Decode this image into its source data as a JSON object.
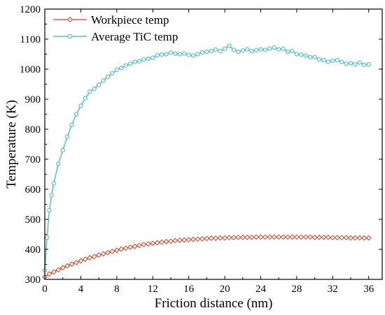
{
  "chart_data": {
    "type": "line",
    "xlabel": "Friction distance (nm)",
    "ylabel": "Temperature (K)",
    "xlim": [
      0,
      37.5
    ],
    "ylim": [
      300,
      1200
    ],
    "xticks": [
      0,
      4,
      8,
      12,
      16,
      20,
      24,
      28,
      32,
      36
    ],
    "yticks": [
      300,
      400,
      500,
      600,
      700,
      800,
      900,
      1000,
      1100,
      1200
    ],
    "legend_position": "top-left",
    "series": [
      {
        "name": "Workpiece temp",
        "color": "#d0432b",
        "marker": "diamond",
        "x": [
          0,
          0.5,
          1,
          1.5,
          2,
          2.5,
          3,
          3.5,
          4,
          4.5,
          5,
          5.5,
          6,
          6.5,
          7,
          7.5,
          8,
          8.5,
          9,
          9.5,
          10,
          10.5,
          11,
          11.5,
          12,
          12.5,
          13,
          13.5,
          14,
          14.5,
          15,
          15.5,
          16,
          16.5,
          17,
          17.5,
          18,
          18.5,
          19,
          19.5,
          20,
          20.5,
          21,
          21.5,
          22,
          22.5,
          23,
          23.5,
          24,
          24.5,
          25,
          25.5,
          26,
          26.5,
          27,
          27.5,
          28,
          28.5,
          29,
          29.5,
          30,
          30.5,
          31,
          31.5,
          32,
          32.5,
          33,
          33.5,
          34,
          34.5,
          35,
          35.5,
          36
        ],
        "y": [
          308,
          318,
          325,
          332,
          339,
          345,
          351,
          356,
          362,
          367,
          372,
          376,
          381,
          385,
          389,
          393,
          397,
          401,
          404,
          407,
          410,
          413,
          416,
          418,
          420,
          422,
          424,
          426,
          427,
          429,
          430,
          431,
          432,
          433,
          434,
          435,
          436,
          437,
          437,
          438,
          438,
          439,
          439,
          440,
          440,
          440,
          440,
          441,
          441,
          441,
          441,
          441,
          441,
          441,
          441,
          441,
          441,
          441,
          441,
          441,
          440,
          440,
          440,
          440,
          439,
          439,
          439,
          439,
          438,
          438,
          438,
          438,
          438
        ]
      },
      {
        "name": "Average TiC temp",
        "color": "#3bb8c8",
        "marker": "circle",
        "x": [
          0,
          0.25,
          0.5,
          0.75,
          1,
          1.5,
          2,
          2.5,
          3,
          3.5,
          4,
          4.5,
          5,
          5.5,
          6,
          6.5,
          7,
          7.5,
          8,
          8.5,
          9,
          9.5,
          10,
          10.5,
          11,
          11.5,
          12,
          12.5,
          13,
          13.5,
          14,
          14.5,
          15,
          15.5,
          16,
          16.5,
          17,
          17.5,
          18,
          18.5,
          19,
          19.5,
          20,
          20.5,
          21,
          21.5,
          22,
          22.5,
          23,
          23.5,
          24,
          24.5,
          25,
          25.5,
          26,
          26.5,
          27,
          27.5,
          28,
          28.5,
          29,
          29.5,
          30,
          30.5,
          31,
          31.5,
          32,
          32.5,
          33,
          33.5,
          34,
          34.5,
          35,
          35.5,
          36
        ],
        "y": [
          330,
          440,
          530,
          580,
          620,
          685,
          730,
          775,
          815,
          850,
          878,
          903,
          925,
          935,
          948,
          962,
          975,
          986,
          998,
          1004,
          1012,
          1018,
          1024,
          1026,
          1032,
          1035,
          1038,
          1046,
          1048,
          1050,
          1055,
          1052,
          1050,
          1052,
          1048,
          1045,
          1050,
          1056,
          1058,
          1060,
          1065,
          1060,
          1068,
          1078,
          1064,
          1058,
          1062,
          1066,
          1060,
          1063,
          1066,
          1064,
          1068,
          1072,
          1066,
          1068,
          1058,
          1060,
          1050,
          1048,
          1045,
          1040,
          1040,
          1032,
          1030,
          1024,
          1028,
          1030,
          1024,
          1018,
          1020,
          1016,
          1022,
          1014,
          1016
        ]
      }
    ]
  }
}
